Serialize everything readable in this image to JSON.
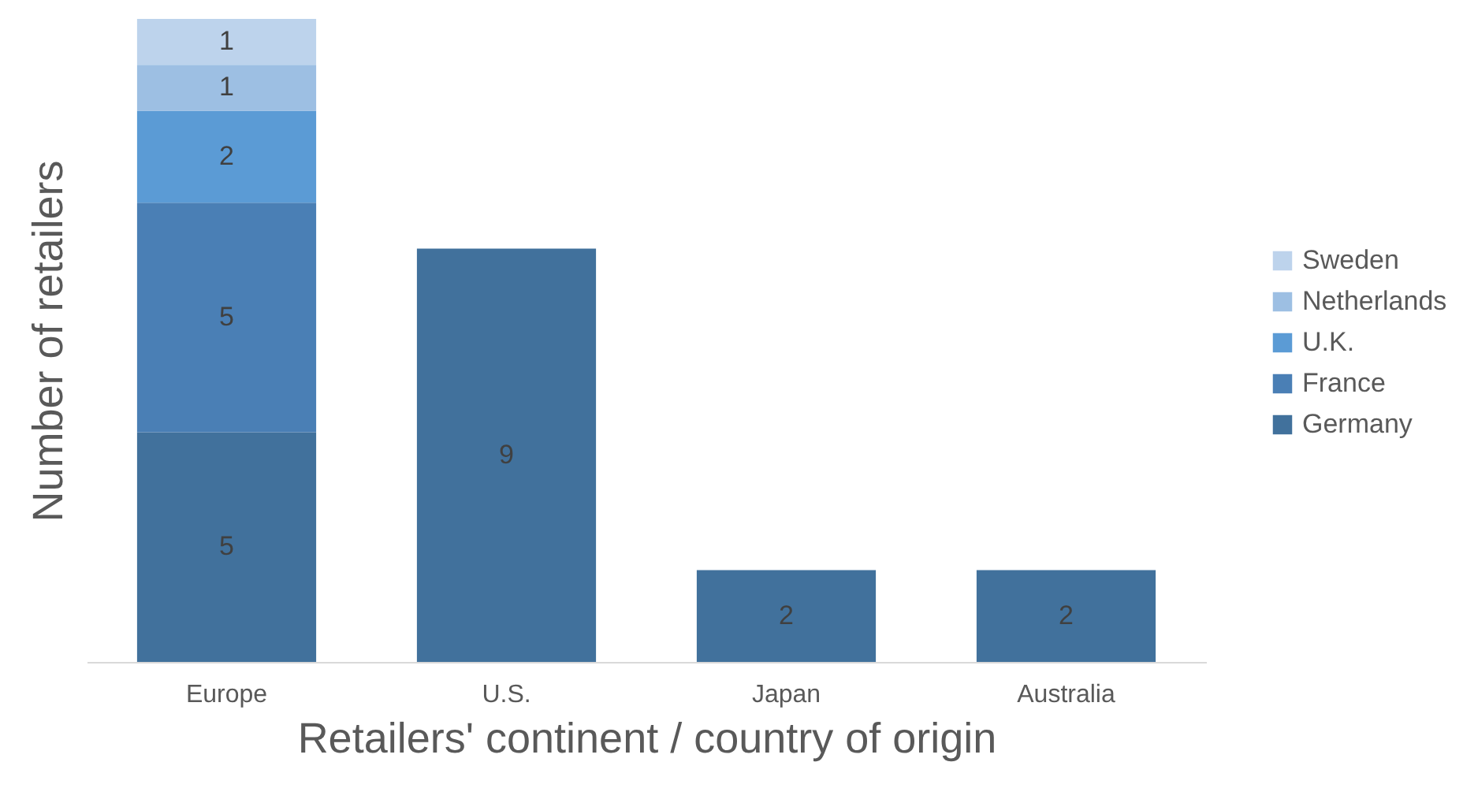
{
  "chart_data": {
    "type": "bar",
    "stacked": true,
    "xlabel": "Retailers' continent / country of origin",
    "ylabel": "Number of retailers",
    "categories": [
      "Europe",
      "U.S.",
      "Japan",
      "Australia"
    ],
    "series": [
      {
        "name": "Germany",
        "color": "#41719c",
        "values": [
          5,
          9,
          2,
          2
        ]
      },
      {
        "name": "France",
        "color": "#4a7fb5",
        "values": [
          5,
          null,
          null,
          null
        ]
      },
      {
        "name": "U.K.",
        "color": "#5b9bd5",
        "values": [
          2,
          null,
          null,
          null
        ]
      },
      {
        "name": "Netherlands",
        "color": "#9dbfe3",
        "values": [
          1,
          null,
          null,
          null
        ]
      },
      {
        "name": "Sweden",
        "color": "#bdd3ec",
        "values": [
          1,
          null,
          null,
          null
        ]
      }
    ],
    "ylim": [
      0,
      14
    ],
    "tick_labels": "x",
    "data_labels": true,
    "grid": false,
    "legend": "right"
  }
}
